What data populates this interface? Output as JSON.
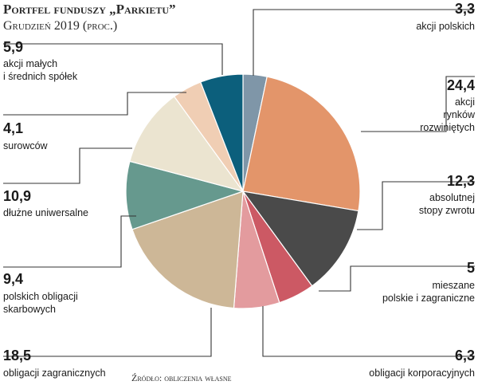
{
  "chart_data": {
    "type": "pie",
    "title": "Portfel funduszy „Parkietu”",
    "subtitle": "Grudzień 2019 (proc.)",
    "source": "Źródło: obliczenia własne",
    "slices": [
      {
        "label": "akcji polskich",
        "value": 3.3,
        "value_text": "3,3",
        "color": "#7f96a8"
      },
      {
        "label": "akcji rynków rozwiniętych",
        "value": 24.4,
        "value_text": "24,4",
        "color": "#e3956a"
      },
      {
        "label": "absolutnej stopy zwrotu",
        "value": 12.3,
        "value_text": "12,3",
        "color": "#4a4a4a"
      },
      {
        "label": "mieszane polskie i zagraniczne",
        "value": 5,
        "value_text": "5",
        "color": "#cc5964"
      },
      {
        "label": "obligacji korporacyjnych",
        "value": 6.3,
        "value_text": "6,3",
        "color": "#e39b9e"
      },
      {
        "label": "obligacji zagranicznych",
        "value": 18.5,
        "value_text": "18,5",
        "color": "#cdb797"
      },
      {
        "label": "polskich obligacji skarbowych",
        "value": 9.4,
        "value_text": "9,4",
        "color": "#66998e"
      },
      {
        "label": "dłużne uniwersalne",
        "value": 10.9,
        "value_text": "10,9",
        "color": "#ebe4d0"
      },
      {
        "label": "surowców",
        "value": 4.1,
        "value_text": "4,1",
        "color": "#f0ceb4"
      },
      {
        "label": "akcji małych i średnich spółek",
        "value": 5.9,
        "value_text": "5,9",
        "color": "#0c5f7c"
      }
    ]
  }
}
